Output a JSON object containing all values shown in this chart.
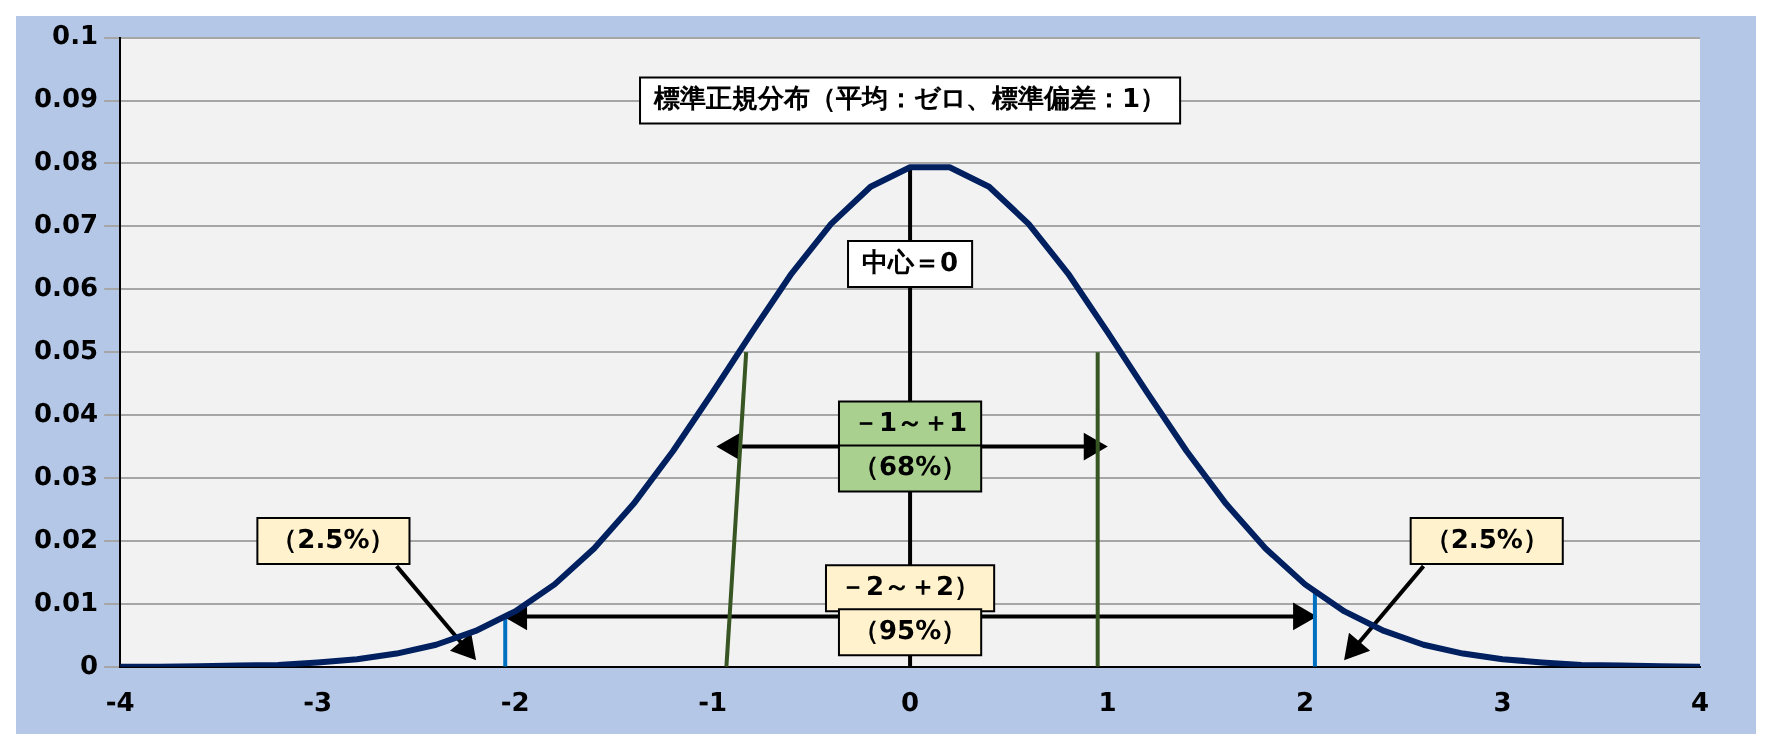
{
  "chart_data": {
    "type": "line",
    "title": "標準正規分布（平均：ゼロ、標準偏差：1）",
    "xlim": [
      -4,
      4
    ],
    "xticks": [
      -4,
      -3,
      -2,
      -1,
      0,
      1,
      2,
      3,
      4
    ],
    "ylim": [
      0,
      0.1
    ],
    "yticks": [
      0,
      0.01,
      0.02,
      0.03,
      0.04,
      0.05,
      0.06,
      0.07,
      0.08,
      0.09,
      0.1
    ],
    "grid": "y",
    "legend": false,
    "marker": "none",
    "line_style": "solid",
    "series": [
      {
        "color": "#002060",
        "x": [
          -4,
          -3.8,
          -3.6,
          -3.4,
          -3.2,
          -3,
          -2.8,
          -2.6,
          -2.4,
          -2.2,
          -2,
          -1.8,
          -1.6,
          -1.4,
          -1.2,
          -1,
          -0.8,
          -0.6,
          -0.4,
          -0.2,
          0,
          0.2,
          0.4,
          0.6,
          0.8,
          1,
          1.2,
          1.4,
          1.6,
          1.8,
          2,
          2.2,
          2.4,
          2.6,
          2.8,
          3,
          3.2,
          3.4,
          3.6,
          3.8,
          4
        ],
        "values": [
          0,
          0,
          0.0001,
          0.0002,
          0.0003,
          0.0007,
          0.0012,
          0.0021,
          0.0035,
          0.0057,
          0.0088,
          0.0131,
          0.0188,
          0.0259,
          0.0343,
          0.0436,
          0.0532,
          0.0625,
          0.0704,
          0.0763,
          0.0794,
          0.0794,
          0.0763,
          0.0704,
          0.0625,
          0.0532,
          0.0436,
          0.0343,
          0.0259,
          0.0188,
          0.0131,
          0.0088,
          0.0057,
          0.0035,
          0.0021,
          0.0012,
          0.0007,
          0.0003,
          0.0002,
          0.0001,
          0
        ]
      },
      {
        "color": "#000000",
        "x": [
          0,
          0
        ],
        "values": [
          0,
          0.0794
        ]
      },
      {
        "color": "#375623",
        "x": [
          -0.93,
          -0.83
        ],
        "values": [
          0,
          0.05
        ]
      },
      {
        "color": "#375623",
        "x": [
          0.95,
          0.95
        ],
        "values": [
          0,
          0.05
        ]
      },
      {
        "color": "#0070c0",
        "x": [
          -2.05,
          -2.05
        ],
        "values": [
          0,
          0.008
        ]
      },
      {
        "color": "#0070c0",
        "x": [
          2.05,
          2.05
        ],
        "values": [
          0,
          0.012
        ]
      },
      {
        "color": "#000000",
        "x": [
          -0.9,
          0.92
        ],
        "values": [
          0.035,
          0.035
        ],
        "marker": "triangle"
      },
      {
        "color": "#000000",
        "x": [
          -1.98,
          1.98
        ],
        "values": [
          0.008,
          0.008
        ],
        "marker": "triangle"
      },
      {
        "color": "#000000",
        "x": [
          -2.6,
          -2.25
        ],
        "values": [
          0.016,
          0.003
        ],
        "marker": "triangle"
      },
      {
        "color": "#000000",
        "x": [
          2.6,
          2.25
        ],
        "values": [
          0.016,
          0.003
        ],
        "marker": "triangle"
      }
    ],
    "annotations": [
      "中心＝0",
      "－1～＋1",
      "（68%）",
      "－2～＋2）",
      "（95%）",
      "（2.5%）",
      "（2.5%）"
    ]
  }
}
